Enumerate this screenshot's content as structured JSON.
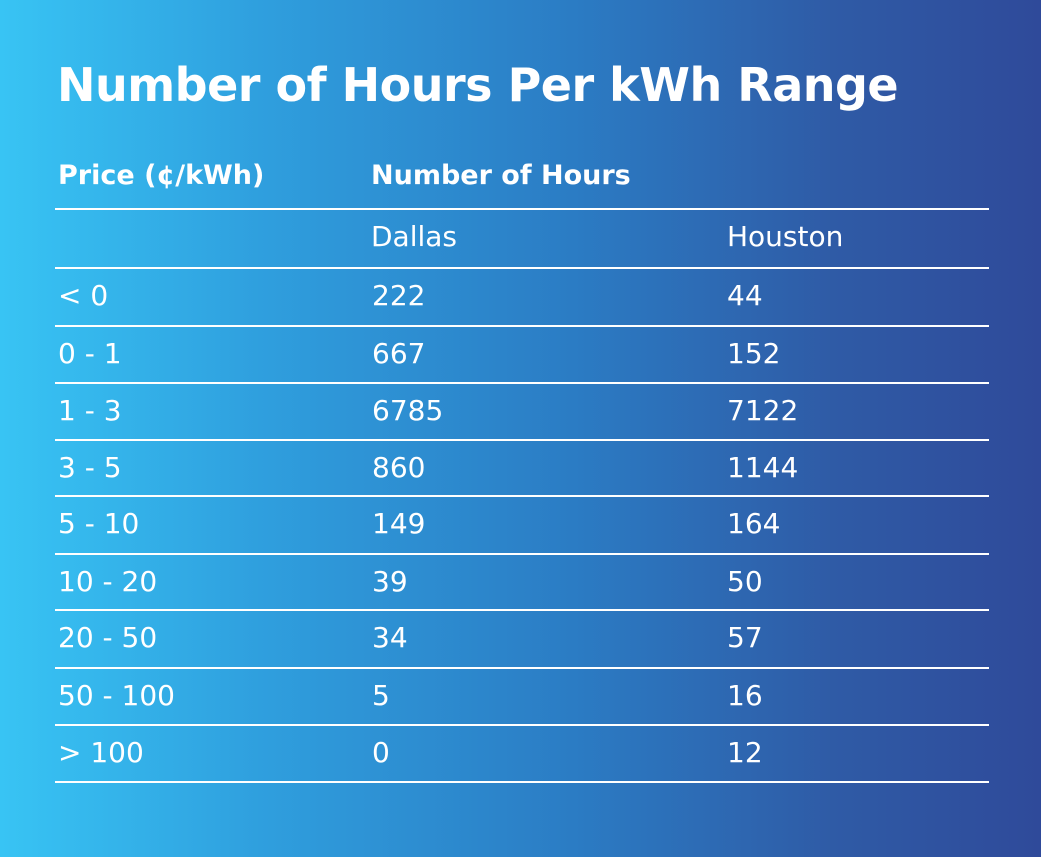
{
  "chart_data": {
    "type": "table",
    "title": "Number of Hours Per kWh Range",
    "header": {
      "price_label": "Price (¢/kWh)",
      "group_label": "Number of Hours",
      "columns": [
        "Dallas",
        "Houston"
      ]
    },
    "rows": [
      {
        "price": "< 0",
        "dallas": "222",
        "houston": "44"
      },
      {
        "price": "0 - 1",
        "dallas": "667",
        "houston": "152"
      },
      {
        "price": "1 - 3",
        "dallas": "6785",
        "houston": "7122"
      },
      {
        "price": "3 - 5",
        "dallas": "860",
        "houston": "1144"
      },
      {
        "price": "5 - 10",
        "dallas": "149",
        "houston": "164"
      },
      {
        "price": "10 - 20",
        "dallas": "39",
        "houston": "50"
      },
      {
        "price": "20 - 50",
        "dallas": "34",
        "houston": "57"
      },
      {
        "price": "50 - 100",
        "dallas": "5",
        "houston": "16"
      },
      {
        "price": "> 100",
        "dallas": "0",
        "houston": "12"
      }
    ]
  }
}
